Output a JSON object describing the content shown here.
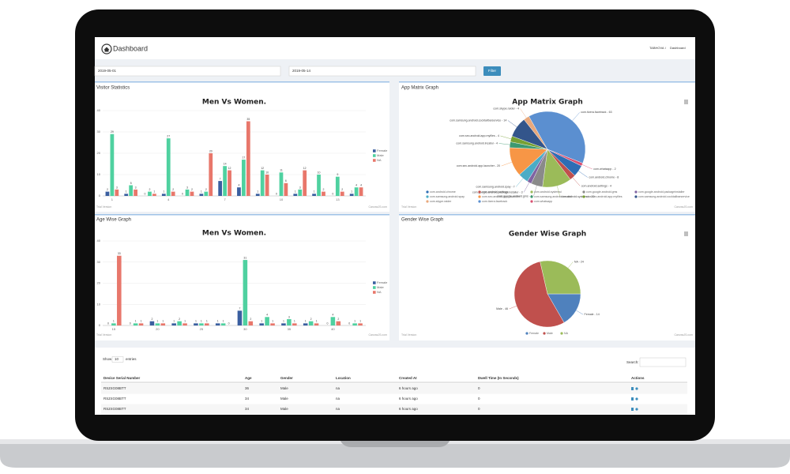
{
  "header": {
    "title": "Dashboard",
    "breadcrumb": [
      "TABHOVA",
      "Dashboard"
    ]
  },
  "filter": {
    "start": "2019-05-01",
    "end": "2019-05-14",
    "button": "Filter"
  },
  "watermark": {
    "left": "Trial Version",
    "right": "CanvasJS.com"
  },
  "panels": [
    {
      "heading": "Visitor Statistics",
      "chart": {
        "type": "bar",
        "title": "Men Vs Women.",
        "categories": [
          "1",
          null,
          null,
          "4",
          null,
          null,
          "7",
          null,
          null,
          "10",
          null,
          null,
          "13",
          null
        ],
        "series": [
          {
            "name": "Female",
            "color": "#3a5fa0",
            "values": [
              2,
              1,
              0,
              1,
              0,
              1,
              7,
              4,
              1,
              0,
              1,
              1,
              0,
              1
            ]
          },
          {
            "name": "Male",
            "color": "#4fd1a0",
            "values": [
              29,
              5,
              2,
              27,
              3,
              2,
              14,
              17,
              12,
              11,
              3,
              10,
              9,
              4
            ]
          },
          {
            "name": "NA",
            "color": "#e8776b",
            "values": [
              3,
              3,
              1,
              2,
              2,
              20,
              12,
              35,
              10,
              6,
              12,
              2,
              2,
              4
            ]
          }
        ],
        "ylim": [
          0,
          40
        ],
        "yticks": [
          0,
          10,
          20,
          30,
          40
        ],
        "grid": true
      }
    },
    {
      "heading": "App Matrix Graph",
      "chart": {
        "type": "pie",
        "title": "App Matrix Graph",
        "categories": [
          "com.android.chrome",
          "com.android.settings",
          "com.android.systemui",
          "com.google.android.gms",
          "com.google.android.packageinstaller",
          "com.samsung.android.spay",
          "com.sec.android.app.launcher",
          "com.samsung.android.incallui",
          "com.sec.android.app.myfiles",
          "com.samsung.android.cocktailbarservice",
          "com.skype.raider",
          "com.tizera.facetrack",
          "com.whatsapp"
        ],
        "values": [
          8,
          4,
          20,
          8,
          3,
          7,
          20,
          4,
          4,
          14,
          4,
          63,
          2
        ],
        "value_labels": [
          "com.android.chrome - 8",
          "com.android.settings - 4",
          "com.android.systemui - 20",
          "com.google.android.gms - 8",
          "com.google.android.packageinstaller - 3",
          "com.samsung.android.spay - 7",
          "com.sec.android.app.launcher - 20",
          "com.samsung.android.incallui - 4",
          "com.sec.android.app.myfiles - 4",
          "com.samsung.android.cocktailbarservice - 14",
          "com.skype.raider - 4",
          "com.tizera.facetrack - 63",
          "com.whatsapp - 2"
        ],
        "colors": [
          "#2e6db4",
          "#c0504d",
          "#9bbb59",
          "#8a8a8a",
          "#8064a2",
          "#4bacc6",
          "#f79646",
          "#3d9970",
          "#77a033",
          "#33558b",
          "#e8a87c",
          "#5b8fd0",
          "#d94f70"
        ]
      }
    },
    {
      "heading": "Age Wise Graph",
      "chart": {
        "type": "bar",
        "title": "Men Vs Women.",
        "categories": [
          "15",
          null,
          "20",
          null,
          "25",
          null,
          "30",
          null,
          "35",
          null,
          "40",
          null
        ],
        "series": [
          {
            "name": "Female",
            "color": "#3a5fa0",
            "values": [
              0,
              0,
              2,
              1,
              1,
              1,
              7,
              1,
              1,
              1,
              0,
              0
            ]
          },
          {
            "name": "Male",
            "color": "#4fd1a0",
            "values": [
              1,
              1,
              1,
              2,
              1,
              1,
              31,
              4,
              3,
              2,
              4,
              1
            ]
          },
          {
            "name": "NA",
            "color": "#e8776b",
            "values": [
              33,
              1,
              1,
              1,
              1,
              0,
              2,
              1,
              1,
              1,
              2,
              1
            ]
          }
        ],
        "ylim": [
          0,
          40
        ],
        "yticks": [
          0,
          10,
          20,
          30,
          40
        ],
        "grid": true
      }
    },
    {
      "heading": "Gender Wise Graph",
      "chart": {
        "type": "pie",
        "title": "Gender Wise Graph",
        "categories": [
          "Female",
          "Male",
          "NA"
        ],
        "values": [
          14,
          46,
          24
        ],
        "value_labels": [
          "Female - 14",
          "Male - 46",
          "NA - 24"
        ],
        "colors": [
          "#4f81bd",
          "#c0504d",
          "#9bbb59"
        ]
      }
    }
  ],
  "table": {
    "show": "Show",
    "length": "10",
    "entries": "entries",
    "search": "Search:",
    "columns": [
      "Device Serial Number",
      "Age",
      "Gender",
      "Location",
      "Created At",
      "Dwell Time (In Seconds)",
      "Actions"
    ],
    "rows": [
      [
        "RSZ4G08BTT",
        "36",
        "Male",
        "na",
        "6 hours ago",
        "0"
      ],
      [
        "RSZ4G08BTT",
        "34",
        "Male",
        "na",
        "6 hours ago",
        "0"
      ],
      [
        "RSZ4G08BTT",
        "34",
        "Male",
        "na",
        "6 hours ago",
        "0"
      ]
    ]
  }
}
